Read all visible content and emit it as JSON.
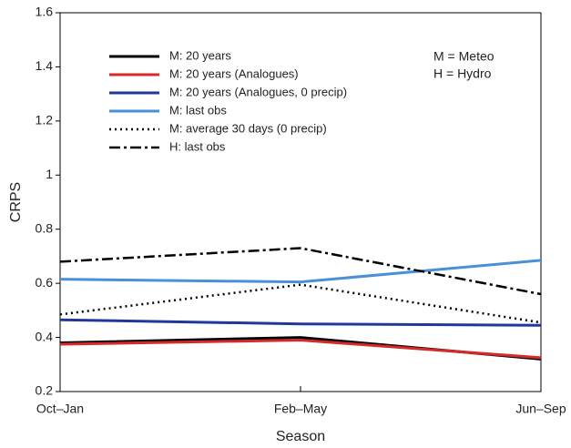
{
  "chart_data": {
    "type": "line",
    "x_label": "Season",
    "y_label": "CRPS",
    "categories": [
      "Oct–Jan",
      "Feb–May",
      "Jun–Sep"
    ],
    "series": [
      {
        "name": "M: 20 years",
        "color": "#000000",
        "style": "solid",
        "values": [
          0.38,
          0.4,
          0.32
        ]
      },
      {
        "name": "M: 20 years (Analogues)",
        "color": "#d42a2a",
        "style": "solid",
        "values": [
          0.375,
          0.39,
          0.325
        ]
      },
      {
        "name": "M: 20 years (Analogues, 0 precip)",
        "color": "#22379a",
        "style": "solid",
        "values": [
          0.465,
          0.45,
          0.445
        ]
      },
      {
        "name": "M: last obs",
        "color": "#4a90d9",
        "style": "solid",
        "values": [
          0.615,
          0.605,
          0.685
        ]
      },
      {
        "name": "M: average 30 days (0 precip)",
        "color": "#000000",
        "style": "dotted",
        "values": [
          0.485,
          0.595,
          0.455
        ]
      },
      {
        "name": "H: last obs",
        "color": "#000000",
        "style": "dashdot",
        "values": [
          0.68,
          0.73,
          0.56
        ]
      }
    ],
    "annotations": [
      "M = Meteo",
      "H = Hydro"
    ],
    "ylim": [
      0.2,
      1.6
    ],
    "yticks": [
      0.2,
      0.4,
      0.6,
      0.8,
      1,
      1.2,
      1.4,
      1.6
    ],
    "legend": "upper left"
  }
}
